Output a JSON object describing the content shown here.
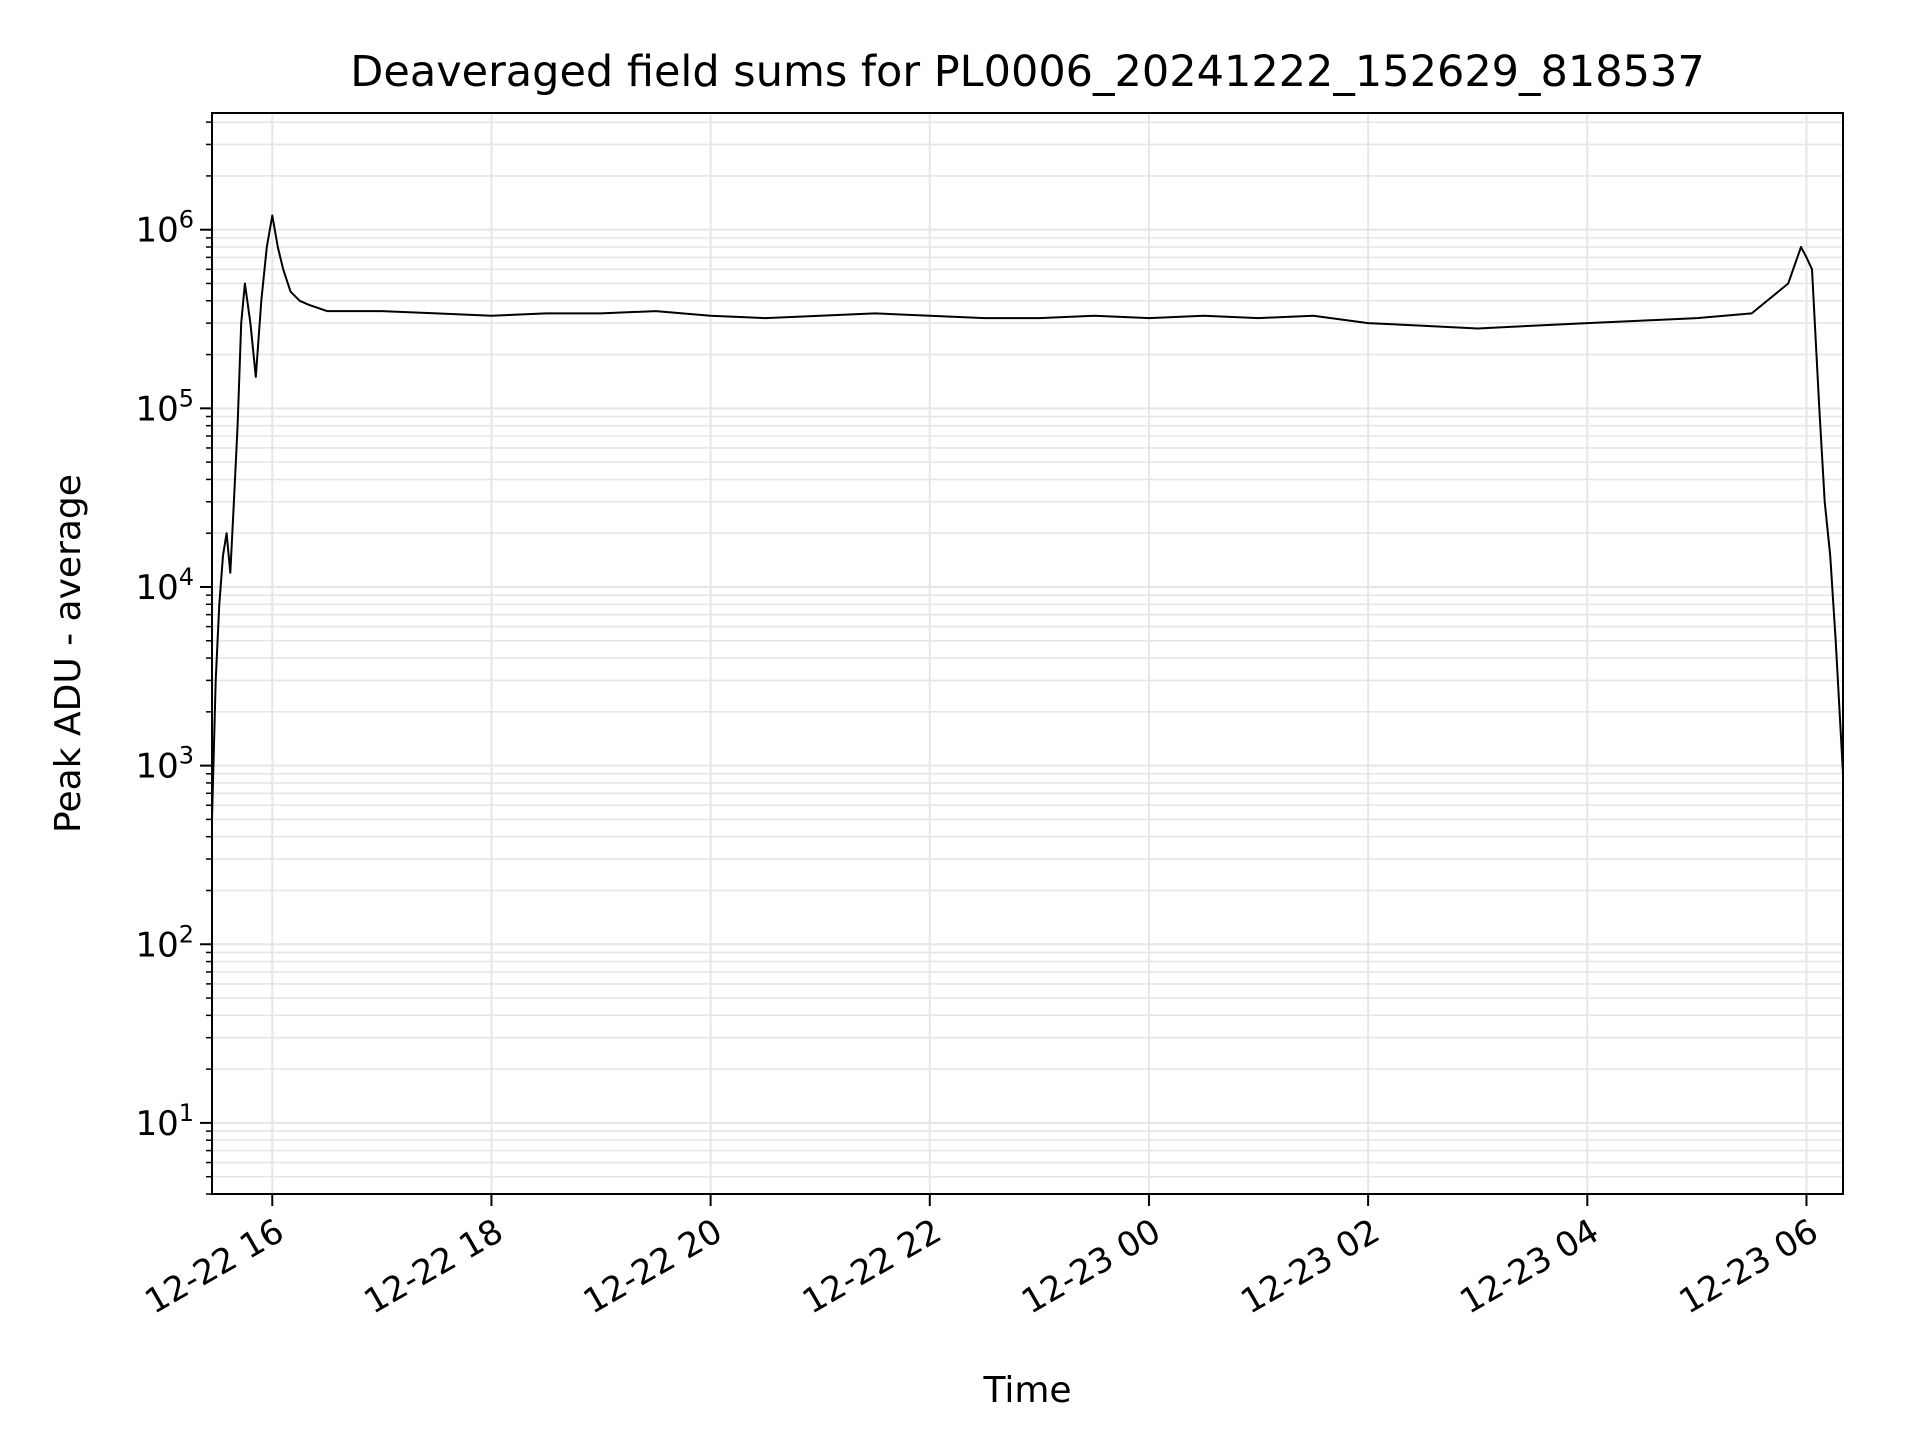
{
  "chart_data": {
    "type": "line",
    "title": "Deaveraged field sums for PL0006_20241222_152629_818537",
    "xlabel": "Time",
    "ylabel": "Peak ADU - average",
    "yscale": "log",
    "ylim": [
      4,
      4500000
    ],
    "xlim": [
      "2024-12-22 15:27",
      "2024-12-23 06:20"
    ],
    "x_ticks": [
      {
        "value": "2024-12-22 16:00",
        "label": "12-22 16"
      },
      {
        "value": "2024-12-22 18:00",
        "label": "12-22 18"
      },
      {
        "value": "2024-12-22 20:00",
        "label": "12-22 20"
      },
      {
        "value": "2024-12-22 22:00",
        "label": "12-22 22"
      },
      {
        "value": "2024-12-23 00:00",
        "label": "12-23 00"
      },
      {
        "value": "2024-12-23 02:00",
        "label": "12-23 02"
      },
      {
        "value": "2024-12-23 04:00",
        "label": "12-23 04"
      },
      {
        "value": "2024-12-23 06:00",
        "label": "12-23 06"
      }
    ],
    "y_ticks": [
      {
        "value": 10,
        "base": "10",
        "exp": "1"
      },
      {
        "value": 100,
        "base": "10",
        "exp": "2"
      },
      {
        "value": 1000,
        "base": "10",
        "exp": "3"
      },
      {
        "value": 10000,
        "base": "10",
        "exp": "4"
      },
      {
        "value": 100000,
        "base": "10",
        "exp": "5"
      },
      {
        "value": 1000000,
        "base": "10",
        "exp": "6"
      }
    ],
    "grid": true,
    "line_color": "#000000",
    "grid_color": "#e6e6e6",
    "series": [
      {
        "x": [
          "2024-12-22 15:27",
          "2024-12-22 15:29",
          "2024-12-22 15:31",
          "2024-12-22 15:33",
          "2024-12-22 15:35",
          "2024-12-22 15:37",
          "2024-12-22 15:39",
          "2024-12-22 15:41",
          "2024-12-22 15:43",
          "2024-12-22 15:45",
          "2024-12-22 15:48",
          "2024-12-22 15:51",
          "2024-12-22 15:54",
          "2024-12-22 15:57",
          "2024-12-22 16:00",
          "2024-12-22 16:03",
          "2024-12-22 16:06",
          "2024-12-22 16:10",
          "2024-12-22 16:15",
          "2024-12-22 16:20",
          "2024-12-22 16:30",
          "2024-12-22 17:00",
          "2024-12-22 17:30",
          "2024-12-22 18:00",
          "2024-12-22 18:30",
          "2024-12-22 19:00",
          "2024-12-22 19:30",
          "2024-12-22 20:00",
          "2024-12-22 20:30",
          "2024-12-22 21:00",
          "2024-12-22 21:30",
          "2024-12-22 22:00",
          "2024-12-22 22:30",
          "2024-12-22 23:00",
          "2024-12-22 23:30",
          "2024-12-23 00:00",
          "2024-12-23 00:30",
          "2024-12-23 01:00",
          "2024-12-23 01:30",
          "2024-12-23 02:00",
          "2024-12-23 02:30",
          "2024-12-23 03:00",
          "2024-12-23 03:30",
          "2024-12-23 04:00",
          "2024-12-23 04:30",
          "2024-12-23 05:00",
          "2024-12-23 05:30",
          "2024-12-23 05:50",
          "2024-12-23 05:57",
          "2024-12-23 06:00",
          "2024-12-23 06:03",
          "2024-12-23 06:07",
          "2024-12-23 06:10",
          "2024-12-23 06:13",
          "2024-12-23 06:16",
          "2024-12-23 06:20"
        ],
        "y": [
          500,
          3000,
          8000,
          15000,
          20000,
          12000,
          30000,
          80000,
          300000,
          500000,
          300000,
          150000,
          400000,
          800000,
          1200000,
          800000,
          600000,
          450000,
          400000,
          380000,
          350000,
          350000,
          340000,
          330000,
          340000,
          340000,
          350000,
          330000,
          320000,
          330000,
          340000,
          330000,
          320000,
          320000,
          330000,
          320000,
          330000,
          320000,
          330000,
          300000,
          290000,
          280000,
          290000,
          300000,
          310000,
          320000,
          340000,
          500000,
          800000,
          700000,
          600000,
          100000,
          30000,
          15000,
          5000,
          900
        ]
      }
    ]
  }
}
